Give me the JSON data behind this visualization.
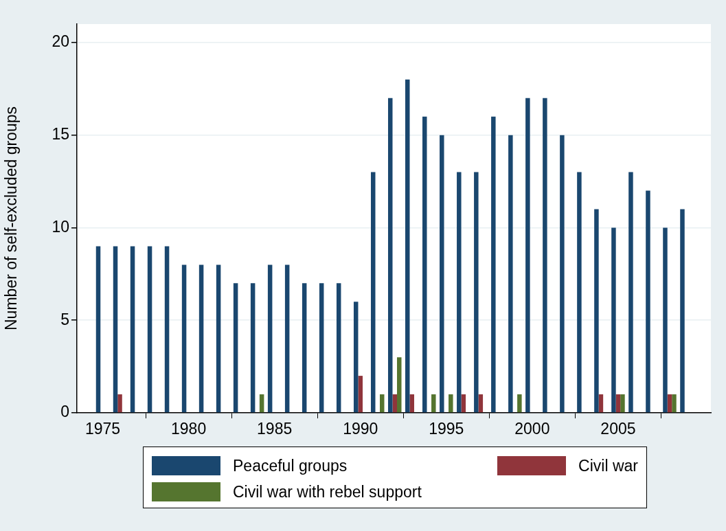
{
  "chart_data": {
    "type": "bar",
    "ylabel": "Number of self-excluded groups",
    "x": [
      1975,
      1976,
      1977,
      1978,
      1979,
      1980,
      1981,
      1982,
      1983,
      1984,
      1985,
      1986,
      1987,
      1988,
      1989,
      1990,
      1991,
      1992,
      1993,
      1994,
      1995,
      1996,
      1997,
      1998,
      1999,
      2000,
      2001,
      2002,
      2003,
      2004,
      2005,
      2006,
      2007,
      2008,
      2009
    ],
    "series": [
      {
        "name": "Peaceful groups",
        "color": "#1a476f",
        "values": [
          9,
          9,
          9,
          9,
          9,
          8,
          8,
          8,
          7,
          7,
          8,
          8,
          7,
          7,
          7,
          6,
          13,
          17,
          18,
          16,
          15,
          13,
          13,
          16,
          15,
          17,
          17,
          15,
          13,
          11,
          10,
          13,
          12,
          10,
          11
        ]
      },
      {
        "name": "Civil war",
        "color": "#90353b",
        "values": [
          0,
          1,
          0,
          0,
          0,
          0,
          0,
          0,
          0,
          0,
          0,
          0,
          0,
          0,
          0,
          2,
          0,
          1,
          1,
          0,
          0,
          1,
          1,
          0,
          0,
          0,
          0,
          0,
          0,
          1,
          1,
          0,
          0,
          1,
          0
        ]
      },
      {
        "name": "Civil war with rebel support",
        "color": "#55752f",
        "values": [
          0,
          0,
          0,
          0,
          0,
          0,
          0,
          0,
          0,
          1,
          0,
          0,
          0,
          0,
          0,
          0,
          1,
          3,
          0,
          1,
          1,
          0,
          0,
          0,
          1,
          0,
          0,
          0,
          0,
          0,
          1,
          0,
          0,
          1,
          0
        ]
      }
    ],
    "xlim": [
      1973.5,
      2010.4
    ],
    "xticks": [
      1975,
      1980,
      1985,
      1990,
      1995,
      2000,
      2005
    ],
    "ylim": [
      0,
      21
    ],
    "yticks": [
      0,
      5,
      10,
      15,
      20
    ],
    "grid": "y",
    "legend": "bottom"
  }
}
